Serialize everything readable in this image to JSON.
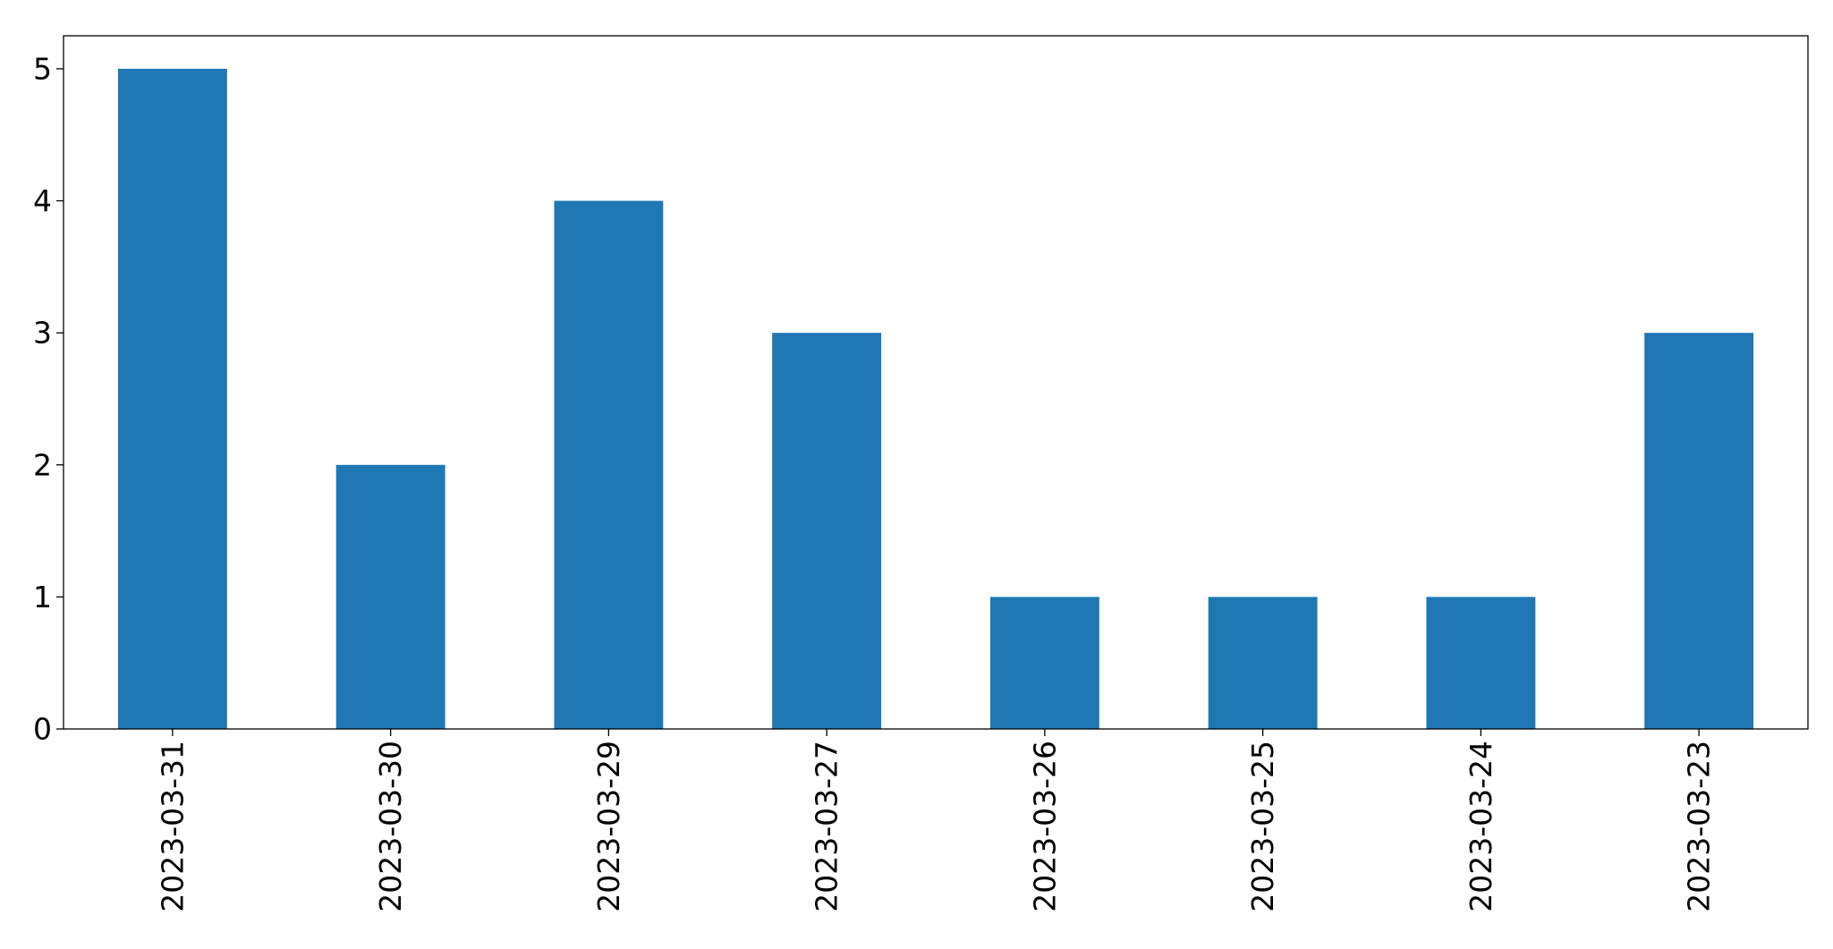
{
  "chart_data": {
    "type": "bar",
    "title": "",
    "xlabel": "",
    "ylabel": "",
    "categories": [
      "2023-03-31",
      "2023-03-30",
      "2023-03-29",
      "2023-03-27",
      "2023-03-26",
      "2023-03-25",
      "2023-03-24",
      "2023-03-23"
    ],
    "values": [
      5,
      2,
      4,
      3,
      1,
      1,
      1,
      3
    ],
    "ylim": [
      0,
      5.25
    ],
    "yticks": [
      "0",
      "1",
      "2",
      "3",
      "4",
      "5"
    ],
    "bar_color": "#1f77b4",
    "grid": false,
    "legend": "none",
    "x_tick_rotation": "vertical"
  }
}
